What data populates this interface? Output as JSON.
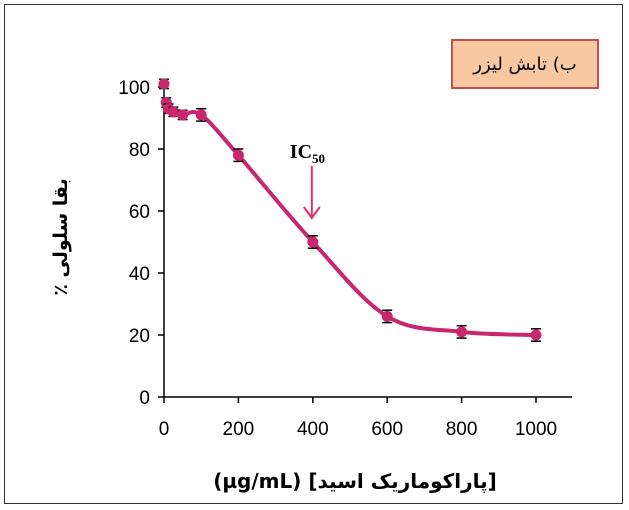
{
  "panel_label": "ب) تابش لیزر",
  "ic50_label": "IC50",
  "ic50_main": "IC",
  "ic50_sub": "50",
  "colors": {
    "series": "#c8276e",
    "axis": "#000000",
    "legend_bg": "#f8c8a3",
    "legend_border": "#c0504d",
    "arrow": "#e0306c"
  },
  "chart_data": {
    "type": "line",
    "title": "",
    "xlabel": "(µg/mL) [پاراکوماریک اسید]",
    "ylabel": "بقا سلولی ٪",
    "xlim": [
      0,
      1000
    ],
    "ylim": [
      0,
      100
    ],
    "x_ticks": [
      0,
      200,
      400,
      600,
      800,
      1000
    ],
    "y_ticks": [
      0,
      20,
      40,
      60,
      80,
      100
    ],
    "grid": false,
    "legend": "top-right",
    "series": [
      {
        "x": [
          0,
          6,
          12,
          25,
          50,
          100,
          200,
          400,
          600,
          800,
          1000
        ],
        "y": [
          101,
          95,
          93,
          92,
          91,
          91,
          78,
          50,
          26,
          21,
          20
        ],
        "error": [
          1.5,
          1.5,
          1.5,
          1.5,
          1.5,
          2,
          2,
          2,
          2,
          2,
          2
        ]
      }
    ],
    "annotation": {
      "text": "IC50",
      "x": 400,
      "y": 50
    }
  }
}
